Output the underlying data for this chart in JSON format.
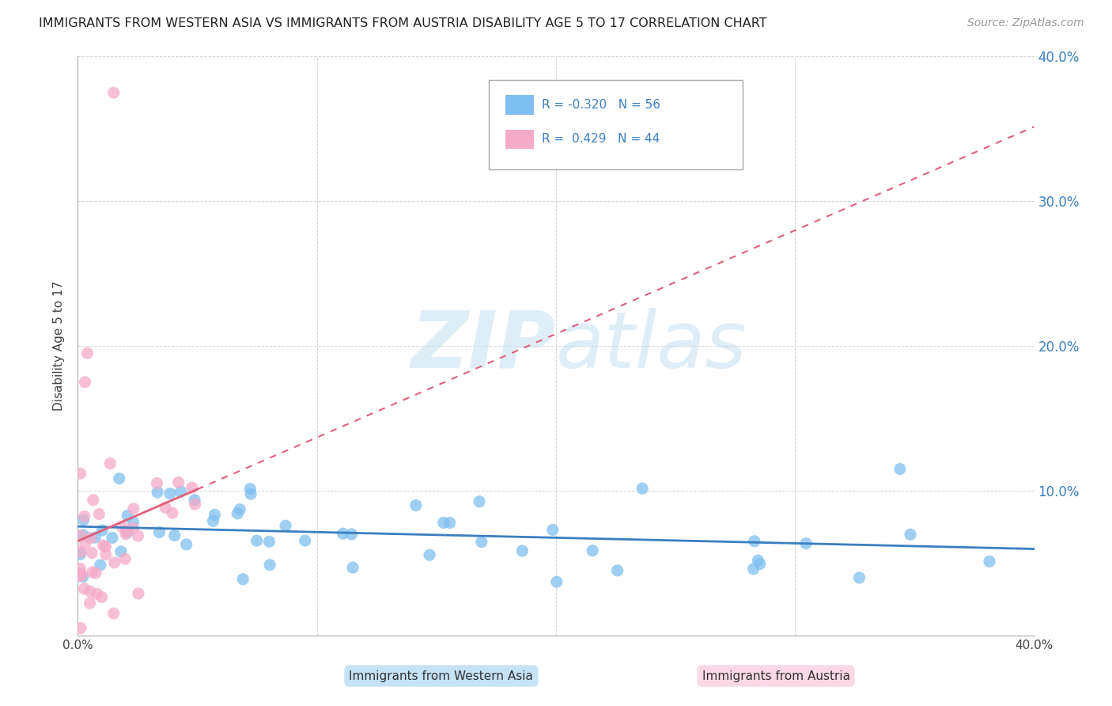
{
  "title": "IMMIGRANTS FROM WESTERN ASIA VS IMMIGRANTS FROM AUSTRIA DISABILITY AGE 5 TO 17 CORRELATION CHART",
  "source": "Source: ZipAtlas.com",
  "ylabel": "Disability Age 5 to 17",
  "legend_label_blue": "Immigrants from Western Asia",
  "legend_label_pink": "Immigrants from Austria",
  "R_blue": -0.32,
  "N_blue": 56,
  "R_pink": 0.429,
  "N_pink": 44,
  "xlim": [
    0.0,
    0.4
  ],
  "ylim": [
    0.0,
    0.4
  ],
  "yticks": [
    0.0,
    0.1,
    0.2,
    0.3,
    0.4
  ],
  "xtick_labels_show": [
    "0.0%",
    "40.0%"
  ],
  "blue_color": "#7fbfef",
  "pink_color": "#f5aac8",
  "blue_line_color": "#3a7fc1",
  "pink_line_color": "#e0607a",
  "watermark_color": "#d8eef8",
  "background_color": "#ffffff",
  "grid_color": "#cccccc"
}
